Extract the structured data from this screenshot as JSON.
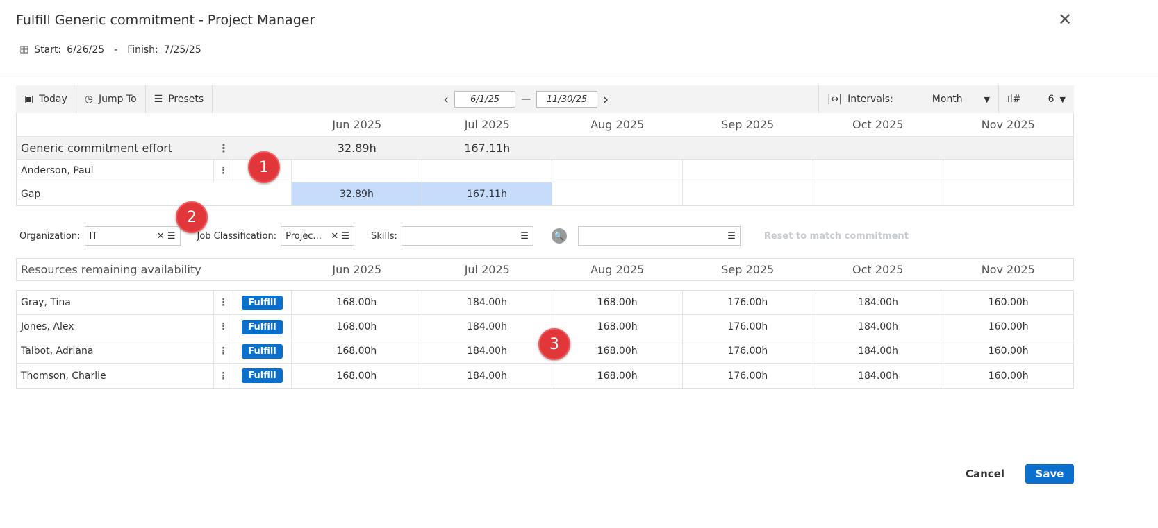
{
  "dialog": {
    "title": "Fulfill Generic commitment - Project Manager",
    "start_label": "Start:",
    "start": "6/26/25",
    "sep": "-",
    "finish_label": "Finish:",
    "finish": "7/25/25"
  },
  "toolbar": {
    "today": "Today",
    "jump_to": "Jump To",
    "presets": "Presets",
    "from": "6/1/25",
    "to": "11/30/25",
    "intervals_label": "Intervals:",
    "interval": "Month",
    "columns": "6"
  },
  "months": [
    "Jun 2025",
    "Jul 2025",
    "Aug 2025",
    "Sep 2025",
    "Oct 2025",
    "Nov 2025"
  ],
  "commitment": {
    "label": "Generic commitment effort",
    "values": [
      "32.89h",
      "167.11h",
      "",
      "",
      "",
      ""
    ],
    "assigned": {
      "name": "Anderson, Paul"
    },
    "gap": {
      "label": "Gap",
      "values": [
        "32.89h",
        "167.11h",
        "",
        "",
        "",
        ""
      ]
    }
  },
  "filters": {
    "org_label": "Organization:",
    "org": "IT",
    "job_label": "Job Classification:",
    "job": "Projec...",
    "skills_label": "Skills:",
    "skills": "",
    "search": "",
    "reset": "Reset to match commitment"
  },
  "resources": {
    "header": "Resources remaining availability",
    "fulfill": "Fulfill",
    "rows": [
      {
        "name": "Gray, Tina",
        "values": [
          "168.00h",
          "184.00h",
          "168.00h",
          "176.00h",
          "184.00h",
          "160.00h"
        ]
      },
      {
        "name": "Jones, Alex",
        "values": [
          "168.00h",
          "184.00h",
          "168.00h",
          "176.00h",
          "184.00h",
          "160.00h"
        ]
      },
      {
        "name": "Talbot, Adriana",
        "values": [
          "168.00h",
          "184.00h",
          "168.00h",
          "176.00h",
          "184.00h",
          "160.00h"
        ]
      },
      {
        "name": "Thomson, Charlie",
        "values": [
          "168.00h",
          "184.00h",
          "168.00h",
          "176.00h",
          "184.00h",
          "160.00h"
        ]
      }
    ]
  },
  "badges": [
    "1",
    "2",
    "3"
  ],
  "footer": {
    "cancel": "Cancel",
    "save": "Save"
  },
  "colors": {
    "accent": "#0b6fce",
    "gap": "#c5dcfb",
    "badge": "#e1373a"
  }
}
